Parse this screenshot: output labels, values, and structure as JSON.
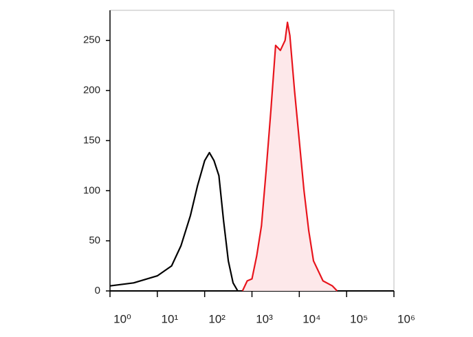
{
  "chart_data": {
    "type": "line",
    "xscale": "log",
    "xlim": [
      1,
      1000000
    ],
    "ylim": [
      0,
      280
    ],
    "xticks": [
      {
        "value": 1,
        "label": "10⁰"
      },
      {
        "value": 10,
        "label": "10¹"
      },
      {
        "value": 100,
        "label": "10²"
      },
      {
        "value": 1000,
        "label": "10³"
      },
      {
        "value": 10000,
        "label": "10⁴"
      },
      {
        "value": 100000,
        "label": "10⁵"
      },
      {
        "value": 1000000,
        "label": "10⁶"
      }
    ],
    "yticks": [
      0,
      50,
      100,
      150,
      200,
      250
    ],
    "series": [
      {
        "color": "#000000",
        "x": [
          1,
          3.16,
          10,
          20,
          31.6,
          50,
          70.8,
          100,
          126,
          158,
          200,
          251,
          316,
          398,
          501
        ],
        "values": [
          5,
          8,
          15,
          25,
          45,
          75,
          105,
          130,
          138,
          130,
          115,
          70,
          30,
          8,
          0
        ]
      },
      {
        "color": "#e8141c",
        "fill": "#fde8ea",
        "x": [
          631,
          794,
          1000,
          1259,
          1585,
          1995,
          2512,
          3162,
          3981,
          5012,
          5623,
          6310,
          7943,
          10000,
          12589,
          15849,
          19953,
          31623,
          50119,
          63096
        ],
        "values": [
          0,
          10,
          12,
          35,
          65,
          120,
          180,
          245,
          240,
          250,
          268,
          255,
          200,
          150,
          100,
          60,
          30,
          10,
          5,
          0
        ]
      }
    ]
  }
}
